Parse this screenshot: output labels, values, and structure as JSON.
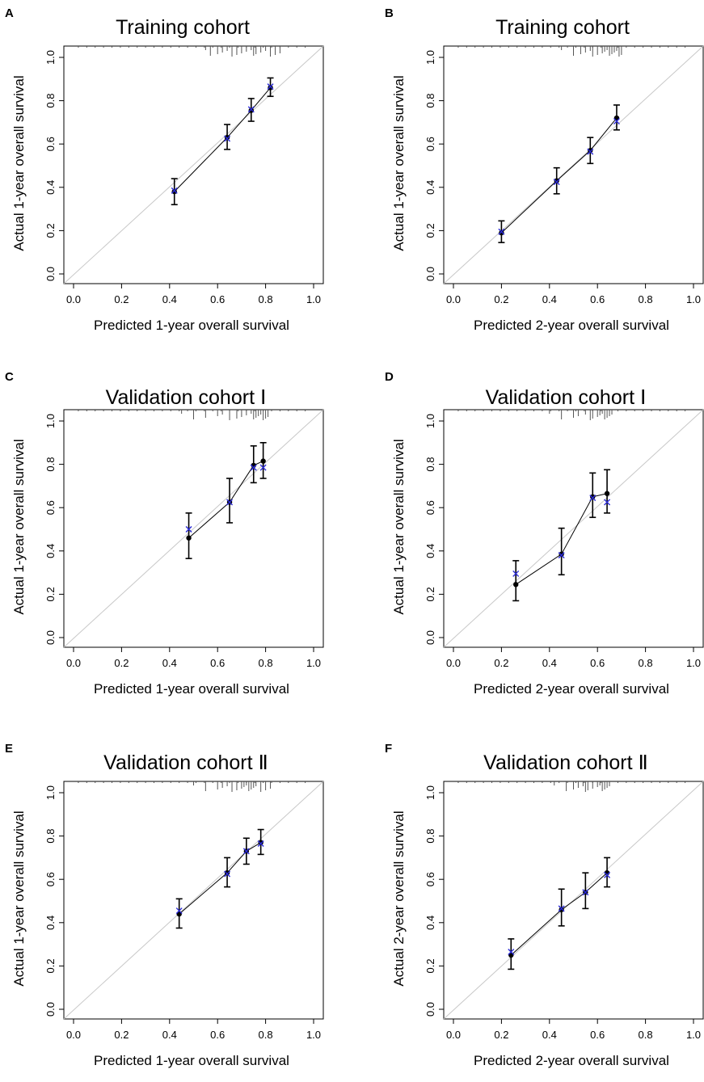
{
  "chart_data": [
    {
      "type": "scatter",
      "panel_label": "A",
      "title": "Training cohort",
      "xlabel": "Predicted 1-year overall survival",
      "ylabel": "Actual 1-year overall survival",
      "xlim": [
        0,
        1
      ],
      "ylim": [
        0,
        1
      ],
      "xticks": [
        "0.0",
        "0.2",
        "0.4",
        "0.6",
        "0.8",
        "1.0"
      ],
      "yticks": [
        "0.0",
        "0.2",
        "0.4",
        "0.6",
        "0.8",
        "1.0"
      ],
      "series": [
        {
          "name": "observed",
          "x": [
            0.42,
            0.64,
            0.74,
            0.82
          ],
          "y": [
            0.38,
            0.63,
            0.755,
            0.86
          ],
          "ci_low": [
            0.32,
            0.575,
            0.705,
            0.82
          ],
          "ci_high": [
            0.44,
            0.69,
            0.81,
            0.905
          ],
          "bias_corrected": [
            0.385,
            0.625,
            0.76,
            0.865
          ]
        }
      ],
      "rug": [
        0.55,
        0.57,
        0.6,
        0.62,
        0.64,
        0.66,
        0.68,
        0.7,
        0.72,
        0.74,
        0.75,
        0.76,
        0.78,
        0.8,
        0.82,
        0.84,
        0.86
      ]
    },
    {
      "type": "scatter",
      "panel_label": "B",
      "title": "Training cohort",
      "xlabel": "Predicted 2-year overall survival",
      "ylabel": "Actual 1-year overall survival",
      "xlim": [
        0,
        1
      ],
      "ylim": [
        0,
        1
      ],
      "xticks": [
        "0.0",
        "0.2",
        "0.4",
        "0.6",
        "0.8",
        "1.0"
      ],
      "yticks": [
        "0.0",
        "0.2",
        "0.4",
        "0.6",
        "0.8",
        "1.0"
      ],
      "series": [
        {
          "name": "observed",
          "x": [
            0.2,
            0.43,
            0.57,
            0.68
          ],
          "y": [
            0.19,
            0.43,
            0.57,
            0.72
          ],
          "ci_low": [
            0.145,
            0.37,
            0.51,
            0.665
          ],
          "ci_high": [
            0.245,
            0.49,
            0.63,
            0.78
          ],
          "bias_corrected": [
            0.195,
            0.425,
            0.565,
            0.705
          ]
        }
      ],
      "rug": [
        0.45,
        0.5,
        0.53,
        0.55,
        0.57,
        0.58,
        0.6,
        0.62,
        0.63,
        0.64,
        0.65,
        0.66,
        0.67,
        0.68,
        0.69,
        0.7
      ]
    },
    {
      "type": "scatter",
      "panel_label": "C",
      "title": "Validation cohort Ⅰ",
      "xlabel": "Predicted 1-year overall survival",
      "ylabel": "Actual 1-year overall survival",
      "xlim": [
        0,
        1
      ],
      "ylim": [
        0,
        1
      ],
      "xticks": [
        "0.0",
        "0.2",
        "0.4",
        "0.6",
        "0.8",
        "1.0"
      ],
      "yticks": [
        "0.0",
        "0.2",
        "0.4",
        "0.6",
        "0.8",
        "1.0"
      ],
      "series": [
        {
          "name": "observed",
          "x": [
            0.48,
            0.65,
            0.75,
            0.79
          ],
          "y": [
            0.46,
            0.625,
            0.795,
            0.815
          ],
          "ci_low": [
            0.365,
            0.53,
            0.715,
            0.735
          ],
          "ci_high": [
            0.575,
            0.735,
            0.885,
            0.9
          ],
          "bias_corrected": [
            0.5,
            0.625,
            0.785,
            0.785
          ]
        }
      ],
      "rug": [
        0.45,
        0.5,
        0.55,
        0.6,
        0.62,
        0.65,
        0.68,
        0.7,
        0.72,
        0.74,
        0.75,
        0.76,
        0.77,
        0.78,
        0.79,
        0.8,
        0.81
      ]
    },
    {
      "type": "scatter",
      "panel_label": "D",
      "title": "Validation cohort Ⅰ",
      "xlabel": "Predicted 2-year overall survival",
      "ylabel": "Actual 1-year overall survival",
      "xlim": [
        0,
        1
      ],
      "ylim": [
        0,
        1
      ],
      "xticks": [
        "0.0",
        "0.2",
        "0.4",
        "0.6",
        "0.8",
        "1.0"
      ],
      "yticks": [
        "0.0",
        "0.2",
        "0.4",
        "0.6",
        "0.8",
        "1.0"
      ],
      "series": [
        {
          "name": "observed",
          "x": [
            0.26,
            0.45,
            0.58,
            0.64
          ],
          "y": [
            0.245,
            0.385,
            0.65,
            0.665
          ],
          "ci_low": [
            0.17,
            0.29,
            0.555,
            0.575
          ],
          "ci_high": [
            0.355,
            0.505,
            0.76,
            0.775
          ],
          "bias_corrected": [
            0.295,
            0.38,
            0.645,
            0.625
          ]
        }
      ],
      "rug": [
        0.4,
        0.45,
        0.5,
        0.52,
        0.55,
        0.57,
        0.58,
        0.6,
        0.61,
        0.62,
        0.63,
        0.64,
        0.65,
        0.66
      ]
    },
    {
      "type": "scatter",
      "panel_label": "E",
      "title": "Validation cohort Ⅱ",
      "xlabel": "Predicted 1-year overall survival",
      "ylabel": "Actual 1-year overall survival",
      "xlim": [
        0,
        1
      ],
      "ylim": [
        0,
        1
      ],
      "xticks": [
        "0.0",
        "0.2",
        "0.4",
        "0.6",
        "0.8",
        "1.0"
      ],
      "yticks": [
        "0.0",
        "0.2",
        "0.4",
        "0.6",
        "0.8",
        "1.0"
      ],
      "series": [
        {
          "name": "observed",
          "x": [
            0.44,
            0.64,
            0.72,
            0.78
          ],
          "y": [
            0.44,
            0.63,
            0.73,
            0.77
          ],
          "ci_low": [
            0.375,
            0.565,
            0.67,
            0.715
          ],
          "ci_high": [
            0.51,
            0.7,
            0.79,
            0.83
          ],
          "bias_corrected": [
            0.455,
            0.625,
            0.73,
            0.765
          ]
        }
      ],
      "rug": [
        0.5,
        0.55,
        0.6,
        0.62,
        0.64,
        0.66,
        0.68,
        0.7,
        0.71,
        0.72,
        0.73,
        0.74,
        0.75,
        0.76,
        0.78,
        0.8,
        0.82
      ]
    },
    {
      "type": "scatter",
      "panel_label": "F",
      "title": "Validation cohort Ⅱ",
      "xlabel": "Predicted 2-year overall survival",
      "ylabel": "Actual 2-year overall survival",
      "xlim": [
        0,
        1
      ],
      "ylim": [
        0,
        1
      ],
      "xticks": [
        "0.0",
        "0.2",
        "0.4",
        "0.6",
        "0.8",
        "1.0"
      ],
      "yticks": [
        "0.0",
        "0.2",
        "0.4",
        "0.6",
        "0.8",
        "1.0"
      ],
      "series": [
        {
          "name": "observed",
          "x": [
            0.24,
            0.45,
            0.55,
            0.64
          ],
          "y": [
            0.25,
            0.46,
            0.54,
            0.63
          ],
          "ci_low": [
            0.185,
            0.385,
            0.465,
            0.565
          ],
          "ci_high": [
            0.325,
            0.555,
            0.63,
            0.7
          ],
          "bias_corrected": [
            0.265,
            0.465,
            0.54,
            0.62
          ]
        }
      ],
      "rug": [
        0.42,
        0.47,
        0.5,
        0.52,
        0.54,
        0.55,
        0.56,
        0.58,
        0.6,
        0.61,
        0.62,
        0.63,
        0.64,
        0.65
      ]
    }
  ],
  "colors": {
    "points": "#000000",
    "bias_corrected": "#2b2bd6",
    "ideal_line": "#c8c8c8",
    "frame": "#000000",
    "rug": "#555555"
  }
}
